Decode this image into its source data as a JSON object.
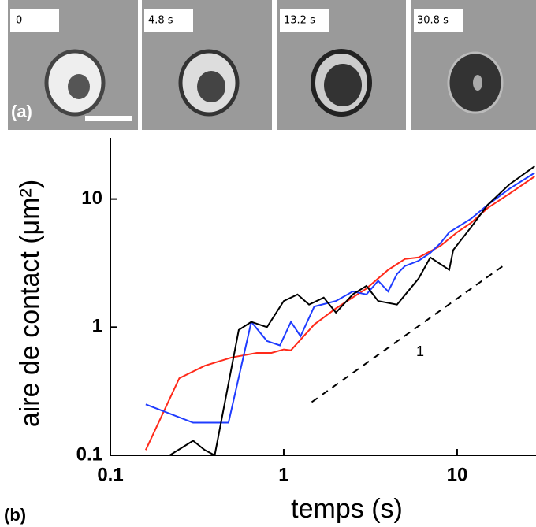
{
  "panel_a": {
    "label": "(a)",
    "frames": [
      "0",
      "4.8 s",
      "13.2 s",
      "30.8 s"
    ]
  },
  "chart_data": {
    "type": "line",
    "panel_label": "(b)",
    "xlabel": "temps (s)",
    "ylabel": "aire de contact (μm²)",
    "log_x": true,
    "log_y": true,
    "xlim": [
      0.1,
      28.5
    ],
    "ylim": [
      0.1,
      30
    ],
    "xticks": [
      0.1,
      1,
      10
    ],
    "yticks": [
      0.1,
      1,
      10
    ],
    "series": [
      {
        "color": "#ff2a1a",
        "x": [
          0.16,
          0.25,
          0.35,
          0.5,
          0.7,
          0.85,
          1.0,
          1.1,
          1.5,
          2,
          3,
          4,
          5,
          6,
          8,
          10,
          12,
          15,
          20,
          28
        ],
        "y": [
          0.11,
          0.4,
          0.5,
          0.58,
          0.63,
          0.63,
          0.67,
          0.66,
          1.05,
          1.4,
          2,
          2.8,
          3.4,
          3.5,
          4.3,
          5.5,
          6.5,
          8.5,
          11,
          15
        ]
      },
      {
        "color": "#1f3cff",
        "x": [
          0.16,
          0.3,
          0.48,
          0.65,
          0.8,
          0.95,
          1.1,
          1.25,
          1.5,
          2,
          2.5,
          3,
          3.5,
          4,
          4.5,
          5,
          6,
          7,
          8,
          9,
          10,
          12,
          15,
          20,
          28
        ],
        "y": [
          0.25,
          0.18,
          0.18,
          1.1,
          0.78,
          0.72,
          1.1,
          0.85,
          1.45,
          1.6,
          1.9,
          1.8,
          2.3,
          1.9,
          2.6,
          3,
          3.3,
          3.8,
          4.5,
          5.5,
          6,
          7,
          9,
          12,
          16
        ]
      },
      {
        "color": "#000000",
        "x": [
          0.22,
          0.3,
          0.35,
          0.4,
          0.55,
          0.65,
          0.8,
          1.0,
          1.2,
          1.4,
          1.7,
          2,
          2.5,
          3,
          3.5,
          4.5,
          6,
          7,
          9,
          9.5,
          12,
          15,
          20,
          28
        ],
        "y": [
          0.1,
          0.13,
          0.11,
          0.1,
          0.95,
          1.1,
          1.0,
          1.6,
          1.8,
          1.5,
          1.7,
          1.3,
          1.8,
          2.1,
          1.6,
          1.5,
          2.4,
          3.5,
          2.8,
          4,
          6,
          9,
          13,
          18
        ]
      }
    ],
    "slope_line": {
      "x": [
        1.45,
        19
      ],
      "y": [
        0.26,
        3.1
      ],
      "annotation": "1"
    }
  }
}
